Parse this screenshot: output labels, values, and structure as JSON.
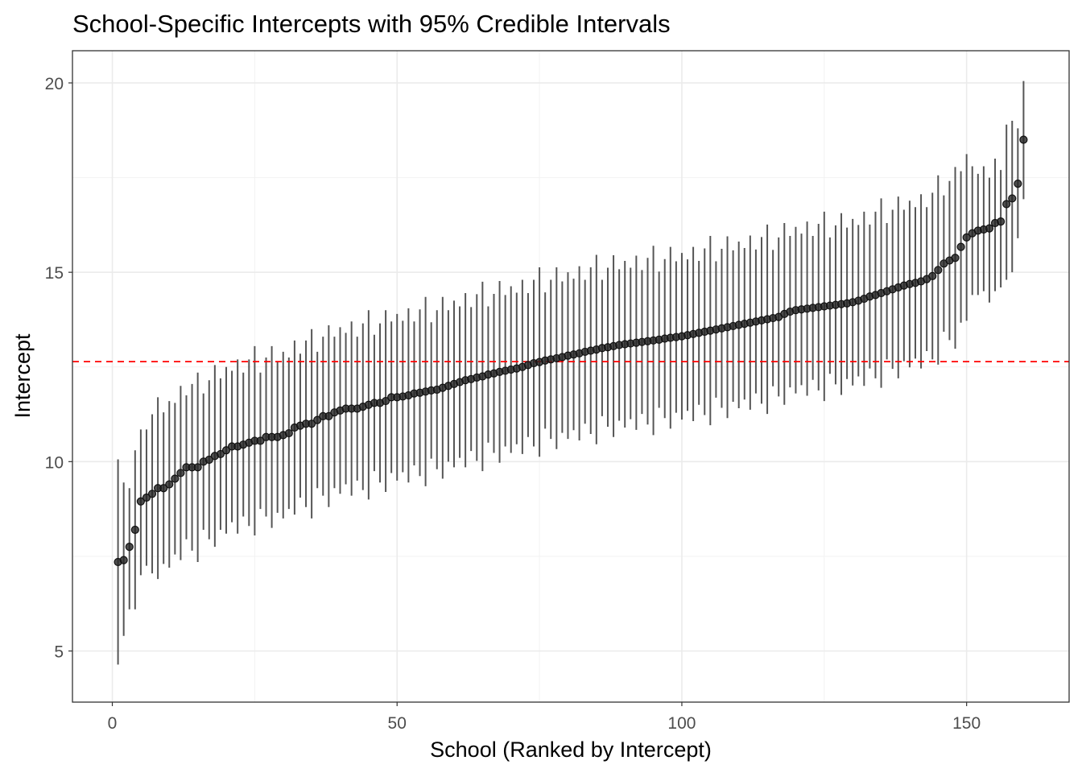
{
  "chart_data": {
    "type": "scatter",
    "title": "School-Specific Intercepts with 95% Credible Intervals",
    "xlabel": "School (Ranked by Intercept)",
    "ylabel": "Intercept",
    "xlim": [
      -7,
      168
    ],
    "ylim": [
      3.65,
      20.85
    ],
    "xticks": [
      0,
      50,
      100,
      150
    ],
    "xtick_labels": [
      "0",
      "50",
      "100",
      "150"
    ],
    "yticks": [
      5,
      10,
      15,
      20
    ],
    "ytick_labels": [
      "5",
      "10",
      "15",
      "20"
    ],
    "grid": true,
    "reference_line": {
      "value": 12.64,
      "style": "dashed",
      "color": "#ff0000"
    },
    "point_color": "#222222",
    "interval_color": "#555555",
    "estimate": [
      7.35,
      7.4,
      7.75,
      8.2,
      8.95,
      9.05,
      9.15,
      9.3,
      9.3,
      9.4,
      9.55,
      9.7,
      9.85,
      9.85,
      9.85,
      10.0,
      10.05,
      10.15,
      10.2,
      10.3,
      10.4,
      10.4,
      10.45,
      10.5,
      10.55,
      10.55,
      10.65,
      10.65,
      10.65,
      10.7,
      10.75,
      10.9,
      10.95,
      11.0,
      11.0,
      11.1,
      11.2,
      11.2,
      11.3,
      11.35,
      11.4,
      11.4,
      11.4,
      11.45,
      11.5,
      11.55,
      11.55,
      11.6,
      11.7,
      11.7,
      11.72,
      11.75,
      11.8,
      11.82,
      11.85,
      11.88,
      11.9,
      11.95,
      12.0,
      12.05,
      12.1,
      12.15,
      12.18,
      12.22,
      12.25,
      12.3,
      12.33,
      12.37,
      12.4,
      12.43,
      12.46,
      12.5,
      12.55,
      12.6,
      12.63,
      12.67,
      12.7,
      12.73,
      12.76,
      12.8,
      12.83,
      12.86,
      12.9,
      12.93,
      12.96,
      13.0,
      13.02,
      13.05,
      13.08,
      13.1,
      13.12,
      13.14,
      13.16,
      13.18,
      13.2,
      13.22,
      13.25,
      13.27,
      13.29,
      13.31,
      13.34,
      13.37,
      13.4,
      13.43,
      13.46,
      13.49,
      13.52,
      13.55,
      13.58,
      13.61,
      13.64,
      13.67,
      13.7,
      13.73,
      13.76,
      13.79,
      13.82,
      13.9,
      13.96,
      14.0,
      14.02,
      14.04,
      14.06,
      14.08,
      14.1,
      14.12,
      14.14,
      14.16,
      14.18,
      14.21,
      14.25,
      14.3,
      14.36,
      14.4,
      14.45,
      14.5,
      14.55,
      14.6,
      14.65,
      14.69,
      14.72,
      14.76,
      14.82,
      14.9,
      15.06,
      15.23,
      15.31,
      15.38,
      15.67,
      15.92,
      16.03,
      16.1,
      16.13,
      16.16,
      16.3,
      16.34,
      16.8,
      16.95,
      17.34,
      18.5
    ],
    "lower": [
      4.64,
      5.4,
      6.1,
      6.1,
      7.0,
      7.25,
      7.05,
      6.9,
      7.3,
      7.2,
      7.55,
      7.4,
      7.95,
      7.65,
      7.35,
      8.2,
      7.95,
      7.75,
      8.2,
      8.1,
      8.4,
      8.1,
      8.55,
      8.3,
      8.05,
      8.75,
      8.55,
      8.25,
      8.65,
      8.5,
      8.75,
      8.6,
      9.05,
      8.8,
      8.5,
      9.3,
      9.1,
      8.8,
      9.3,
      9.15,
      9.4,
      9.1,
      9.5,
      9.25,
      9.0,
      9.75,
      9.45,
      9.2,
      9.7,
      9.5,
      9.72,
      9.45,
      9.9,
      9.62,
      9.35,
      10.08,
      9.8,
      9.55,
      10.0,
      9.85,
      10.1,
      9.85,
      10.28,
      10.02,
      9.75,
      10.5,
      10.23,
      9.97,
      10.4,
      10.23,
      10.46,
      10.2,
      10.65,
      10.4,
      10.13,
      10.87,
      10.6,
      10.33,
      10.76,
      10.6,
      10.83,
      10.56,
      11.0,
      10.73,
      10.46,
      11.2,
      10.92,
      10.65,
      11.08,
      10.9,
      11.12,
      10.84,
      11.26,
      10.98,
      10.7,
      11.42,
      11.15,
      10.87,
      11.29,
      11.11,
      11.34,
      11.07,
      11.5,
      11.23,
      10.96,
      11.69,
      11.42,
      11.15,
      11.58,
      11.41,
      11.64,
      11.37,
      11.8,
      11.53,
      11.26,
      11.99,
      11.72,
      11.5,
      11.96,
      11.8,
      12.02,
      11.74,
      12.16,
      11.88,
      11.6,
      12.32,
      12.04,
      11.76,
      12.18,
      12.01,
      12.25,
      12.0,
      12.46,
      12.2,
      11.95,
      12.7,
      12.45,
      12.2,
      12.65,
      12.49,
      12.72,
      12.46,
      12.92,
      12.7,
      12.56,
      13.43,
      13.21,
      12.98,
      13.67,
      13.72,
      14.4,
      14.4,
      14.5,
      14.2,
      14.5,
      14.6,
      14.8,
      15.0,
      15.9,
      16.93
    ],
    "upper": [
      10.06,
      9.45,
      9.3,
      10.3,
      10.85,
      10.85,
      11.25,
      11.7,
      11.3,
      11.6,
      11.55,
      12.0,
      11.75,
      12.05,
      12.35,
      11.8,
      12.15,
      12.55,
      12.2,
      12.5,
      12.4,
      12.7,
      12.35,
      12.7,
      13.05,
      12.35,
      12.75,
      13.05,
      12.65,
      12.9,
      12.75,
      13.2,
      12.85,
      13.2,
      13.5,
      12.9,
      13.3,
      13.6,
      13.3,
      13.55,
      13.4,
      13.7,
      13.3,
      13.65,
      14.0,
      13.35,
      13.65,
      14.0,
      13.7,
      13.9,
      13.72,
      14.05,
      13.7,
      14.02,
      14.35,
      13.68,
      14.0,
      14.35,
      14.0,
      14.25,
      14.1,
      14.45,
      14.08,
      14.42,
      14.75,
      14.1,
      14.43,
      14.77,
      14.4,
      14.63,
      14.46,
      14.8,
      14.45,
      14.8,
      15.13,
      14.47,
      14.8,
      15.13,
      14.76,
      15.0,
      14.83,
      15.16,
      14.8,
      15.13,
      15.46,
      14.8,
      15.12,
      15.45,
      15.08,
      15.3,
      15.12,
      15.44,
      15.06,
      15.38,
      15.7,
      15.02,
      15.35,
      15.67,
      15.29,
      15.51,
      15.34,
      15.67,
      15.3,
      15.63,
      15.96,
      15.29,
      15.62,
      15.95,
      15.58,
      15.81,
      15.64,
      15.97,
      15.6,
      15.93,
      16.26,
      15.59,
      15.92,
      16.3,
      15.96,
      16.2,
      16.02,
      16.34,
      15.96,
      16.28,
      16.6,
      15.92,
      16.24,
      16.56,
      16.18,
      16.41,
      16.25,
      16.6,
      16.26,
      16.6,
      16.95,
      16.3,
      16.65,
      17.0,
      16.65,
      16.89,
      16.72,
      17.06,
      16.72,
      17.1,
      17.56,
      17.03,
      17.41,
      17.78,
      17.67,
      18.12,
      17.8,
      17.6,
      17.8,
      17.5,
      18.0,
      17.7,
      18.9,
      19.0,
      18.8,
      20.05
    ]
  }
}
